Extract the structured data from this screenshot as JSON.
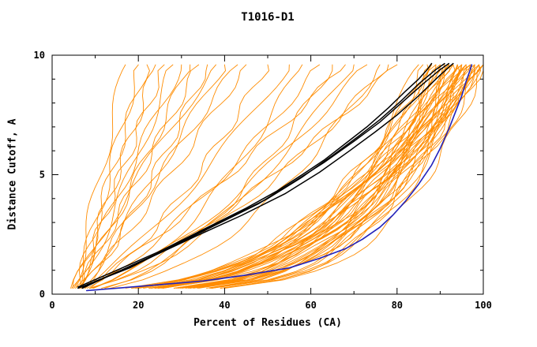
{
  "chart_data": {
    "type": "line",
    "title": "T1016-D1",
    "xlabel": "Percent of Residues (CA)",
    "ylabel": "Distance Cutoff, A",
    "xlim": [
      0,
      100
    ],
    "ylim": [
      0,
      10
    ],
    "x_major_ticks": [
      0,
      20,
      40,
      60,
      80,
      100
    ],
    "x_minor_ticks": [
      10,
      30,
      50,
      70,
      90
    ],
    "y_major_ticks": [
      0,
      5,
      10
    ],
    "y_minor_ticks": [
      1,
      2,
      3,
      4,
      6,
      7,
      8,
      9
    ],
    "grid": false,
    "legend": "none",
    "colors": {
      "prediction": "#ff8c00",
      "reference": "#000000",
      "highlight": "#2222bb",
      "frame": "#000000",
      "background": "#ffffff"
    },
    "blue_curve": {
      "name": "highlight-model",
      "points": [
        [
          8,
          0.15
        ],
        [
          15,
          0.25
        ],
        [
          25,
          0.4
        ],
        [
          35,
          0.55
        ],
        [
          45,
          0.8
        ],
        [
          55,
          1.1
        ],
        [
          62,
          1.5
        ],
        [
          68,
          1.9
        ],
        [
          72,
          2.3
        ],
        [
          76,
          2.8
        ],
        [
          79,
          3.3
        ],
        [
          82,
          3.9
        ],
        [
          85,
          4.6
        ],
        [
          88,
          5.4
        ],
        [
          90,
          6.1
        ],
        [
          92,
          6.9
        ],
        [
          93.5,
          7.6
        ],
        [
          95,
          8.3
        ],
        [
          96,
          8.9
        ],
        [
          96.8,
          9.3
        ],
        [
          97.3,
          9.6
        ]
      ]
    },
    "black_curves": {
      "name": "reference-models",
      "curves": [
        [
          [
            6,
            0.3
          ],
          [
            15,
            1.0
          ],
          [
            25,
            1.8
          ],
          [
            35,
            2.7
          ],
          [
            45,
            3.6
          ],
          [
            52,
            4.3
          ],
          [
            58,
            5.0
          ],
          [
            63,
            5.6
          ],
          [
            68,
            6.3
          ],
          [
            73,
            7.0
          ],
          [
            78,
            7.8
          ],
          [
            82,
            8.5
          ],
          [
            85,
            9.0
          ],
          [
            87,
            9.4
          ],
          [
            88,
            9.65
          ]
        ],
        [
          [
            6,
            0.25
          ],
          [
            18,
            1.1
          ],
          [
            30,
            2.2
          ],
          [
            40,
            3.1
          ],
          [
            50,
            4.0
          ],
          [
            58,
            4.9
          ],
          [
            65,
            5.8
          ],
          [
            71,
            6.6
          ],
          [
            76,
            7.3
          ],
          [
            81,
            8.1
          ],
          [
            85,
            8.8
          ],
          [
            89,
            9.4
          ],
          [
            91,
            9.65
          ]
        ],
        [
          [
            7,
            0.3
          ],
          [
            20,
            1.3
          ],
          [
            33,
            2.4
          ],
          [
            44,
            3.3
          ],
          [
            54,
            4.2
          ],
          [
            62,
            5.1
          ],
          [
            69,
            6.0
          ],
          [
            75,
            6.8
          ],
          [
            80,
            7.5
          ],
          [
            85,
            8.3
          ],
          [
            89,
            9.0
          ],
          [
            92,
            9.5
          ],
          [
            93,
            9.65
          ]
        ],
        [
          [
            7,
            0.25
          ],
          [
            16,
            1.0
          ],
          [
            28,
            2.0
          ],
          [
            38,
            2.9
          ],
          [
            48,
            3.8
          ],
          [
            56,
            4.7
          ],
          [
            63,
            5.5
          ],
          [
            70,
            6.4
          ],
          [
            76,
            7.2
          ],
          [
            81,
            8.0
          ],
          [
            86,
            8.8
          ],
          [
            90,
            9.4
          ],
          [
            92,
            9.65
          ]
        ]
      ]
    },
    "orange_curves": {
      "name": "prediction-models",
      "param_format": "[x_start_percent, x_at_top_percent, shape_exponent]",
      "y_range": [
        0.25,
        9.6
      ],
      "params": [
        [
          5,
          17,
          1.0
        ],
        [
          5,
          20,
          0.9
        ],
        [
          6,
          22,
          1.1
        ],
        [
          5,
          24,
          0.95
        ],
        [
          6,
          26,
          1.05
        ],
        [
          5,
          28,
          0.85
        ],
        [
          6,
          30,
          1.1
        ],
        [
          5,
          32,
          0.9
        ],
        [
          6,
          34,
          1.0
        ],
        [
          6,
          36,
          0.8
        ],
        [
          5,
          38,
          1.15
        ],
        [
          6,
          40,
          0.95
        ],
        [
          7,
          43,
          1.05
        ],
        [
          6,
          45,
          0.9
        ],
        [
          6,
          50,
          0.7
        ],
        [
          6,
          55,
          0.8
        ],
        [
          7,
          58,
          0.6
        ],
        [
          6,
          62,
          0.75
        ],
        [
          7,
          65,
          0.55
        ],
        [
          6,
          68,
          0.85
        ],
        [
          7,
          70,
          0.6
        ],
        [
          6,
          73,
          0.7
        ],
        [
          7,
          76,
          0.5
        ],
        [
          6,
          78,
          0.65
        ],
        [
          7,
          80,
          0.75
        ],
        [
          5,
          85,
          0.3
        ],
        [
          6,
          86,
          0.26
        ],
        [
          7,
          87,
          0.34
        ],
        [
          8,
          88,
          0.22
        ],
        [
          5,
          88,
          0.38
        ],
        [
          6,
          89,
          0.28
        ],
        [
          7,
          89,
          0.36
        ],
        [
          8,
          90,
          0.24
        ],
        [
          5,
          90,
          0.32
        ],
        [
          6,
          90,
          0.4
        ],
        [
          7,
          91,
          0.26
        ],
        [
          8,
          91,
          0.34
        ],
        [
          5,
          92,
          0.22
        ],
        [
          6,
          92,
          0.3
        ],
        [
          7,
          92,
          0.38
        ],
        [
          8,
          93,
          0.25
        ],
        [
          5,
          93,
          0.33
        ],
        [
          6,
          93,
          0.41
        ],
        [
          7,
          94,
          0.23
        ],
        [
          8,
          94,
          0.31
        ],
        [
          5,
          94,
          0.39
        ],
        [
          6,
          95,
          0.27
        ],
        [
          7,
          95,
          0.35
        ],
        [
          8,
          95,
          0.43
        ],
        [
          5,
          95,
          0.21
        ],
        [
          6,
          96,
          0.29
        ],
        [
          7,
          96,
          0.37
        ],
        [
          8,
          96,
          0.45
        ],
        [
          5,
          96,
          0.25
        ],
        [
          6,
          97,
          0.33
        ],
        [
          7,
          97,
          0.41
        ],
        [
          8,
          97,
          0.23
        ],
        [
          5,
          97,
          0.31
        ],
        [
          6,
          98,
          0.39
        ],
        [
          7,
          98,
          0.27
        ],
        [
          8,
          98,
          0.35
        ],
        [
          5,
          98,
          0.43
        ],
        [
          6,
          99,
          0.24
        ],
        [
          7,
          99,
          0.32
        ],
        [
          8,
          99,
          0.4
        ],
        [
          5,
          99,
          0.28
        ],
        [
          6,
          100,
          0.36
        ],
        [
          7,
          100,
          0.22
        ],
        [
          8,
          100,
          0.3
        ],
        [
          5,
          100,
          0.38
        ]
      ]
    }
  }
}
